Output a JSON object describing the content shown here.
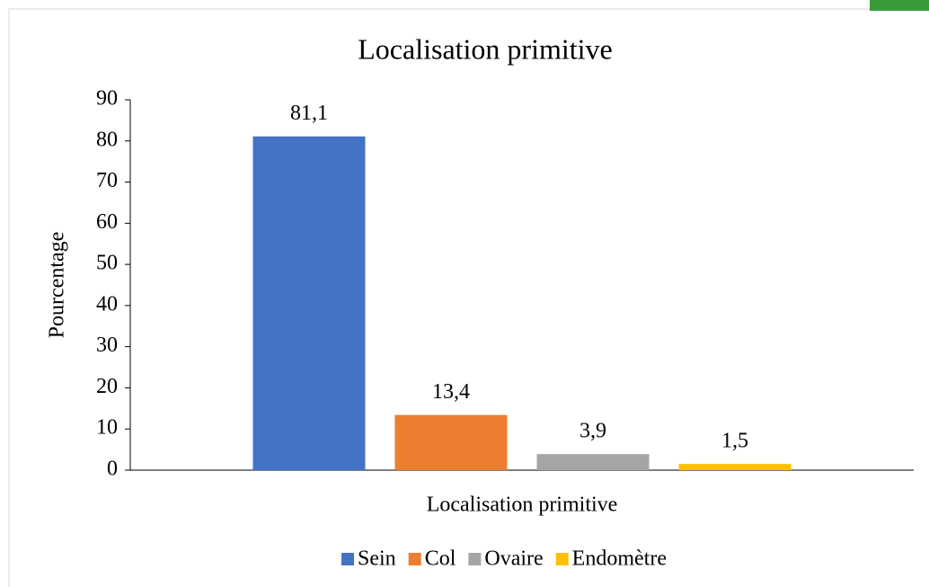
{
  "chart_data": {
    "type": "bar",
    "title": "Localisation primitive",
    "categories": [
      "Localisation primitive"
    ],
    "y_label": "Pourcentage",
    "series": [
      {
        "name": "Sein",
        "color": "#4472c4",
        "values": [
          81.1
        ],
        "value_labels": [
          "81,1"
        ]
      },
      {
        "name": "Col",
        "color": "#ed7d31",
        "values": [
          13.4
        ],
        "value_labels": [
          "13,4"
        ]
      },
      {
        "name": "Ovaire",
        "color": "#a5a5a5",
        "values": [
          3.9
        ],
        "value_labels": [
          "3,9"
        ]
      },
      {
        "name": "Endomètre",
        "color": "#ffc000",
        "values": [
          1.5
        ],
        "value_labels": [
          "1,5"
        ]
      }
    ],
    "ylim": [
      0,
      90
    ],
    "yticks": [
      0,
      10,
      20,
      30,
      40,
      50,
      60,
      70,
      80,
      90
    ],
    "grid": false,
    "legend": "bottom"
  }
}
